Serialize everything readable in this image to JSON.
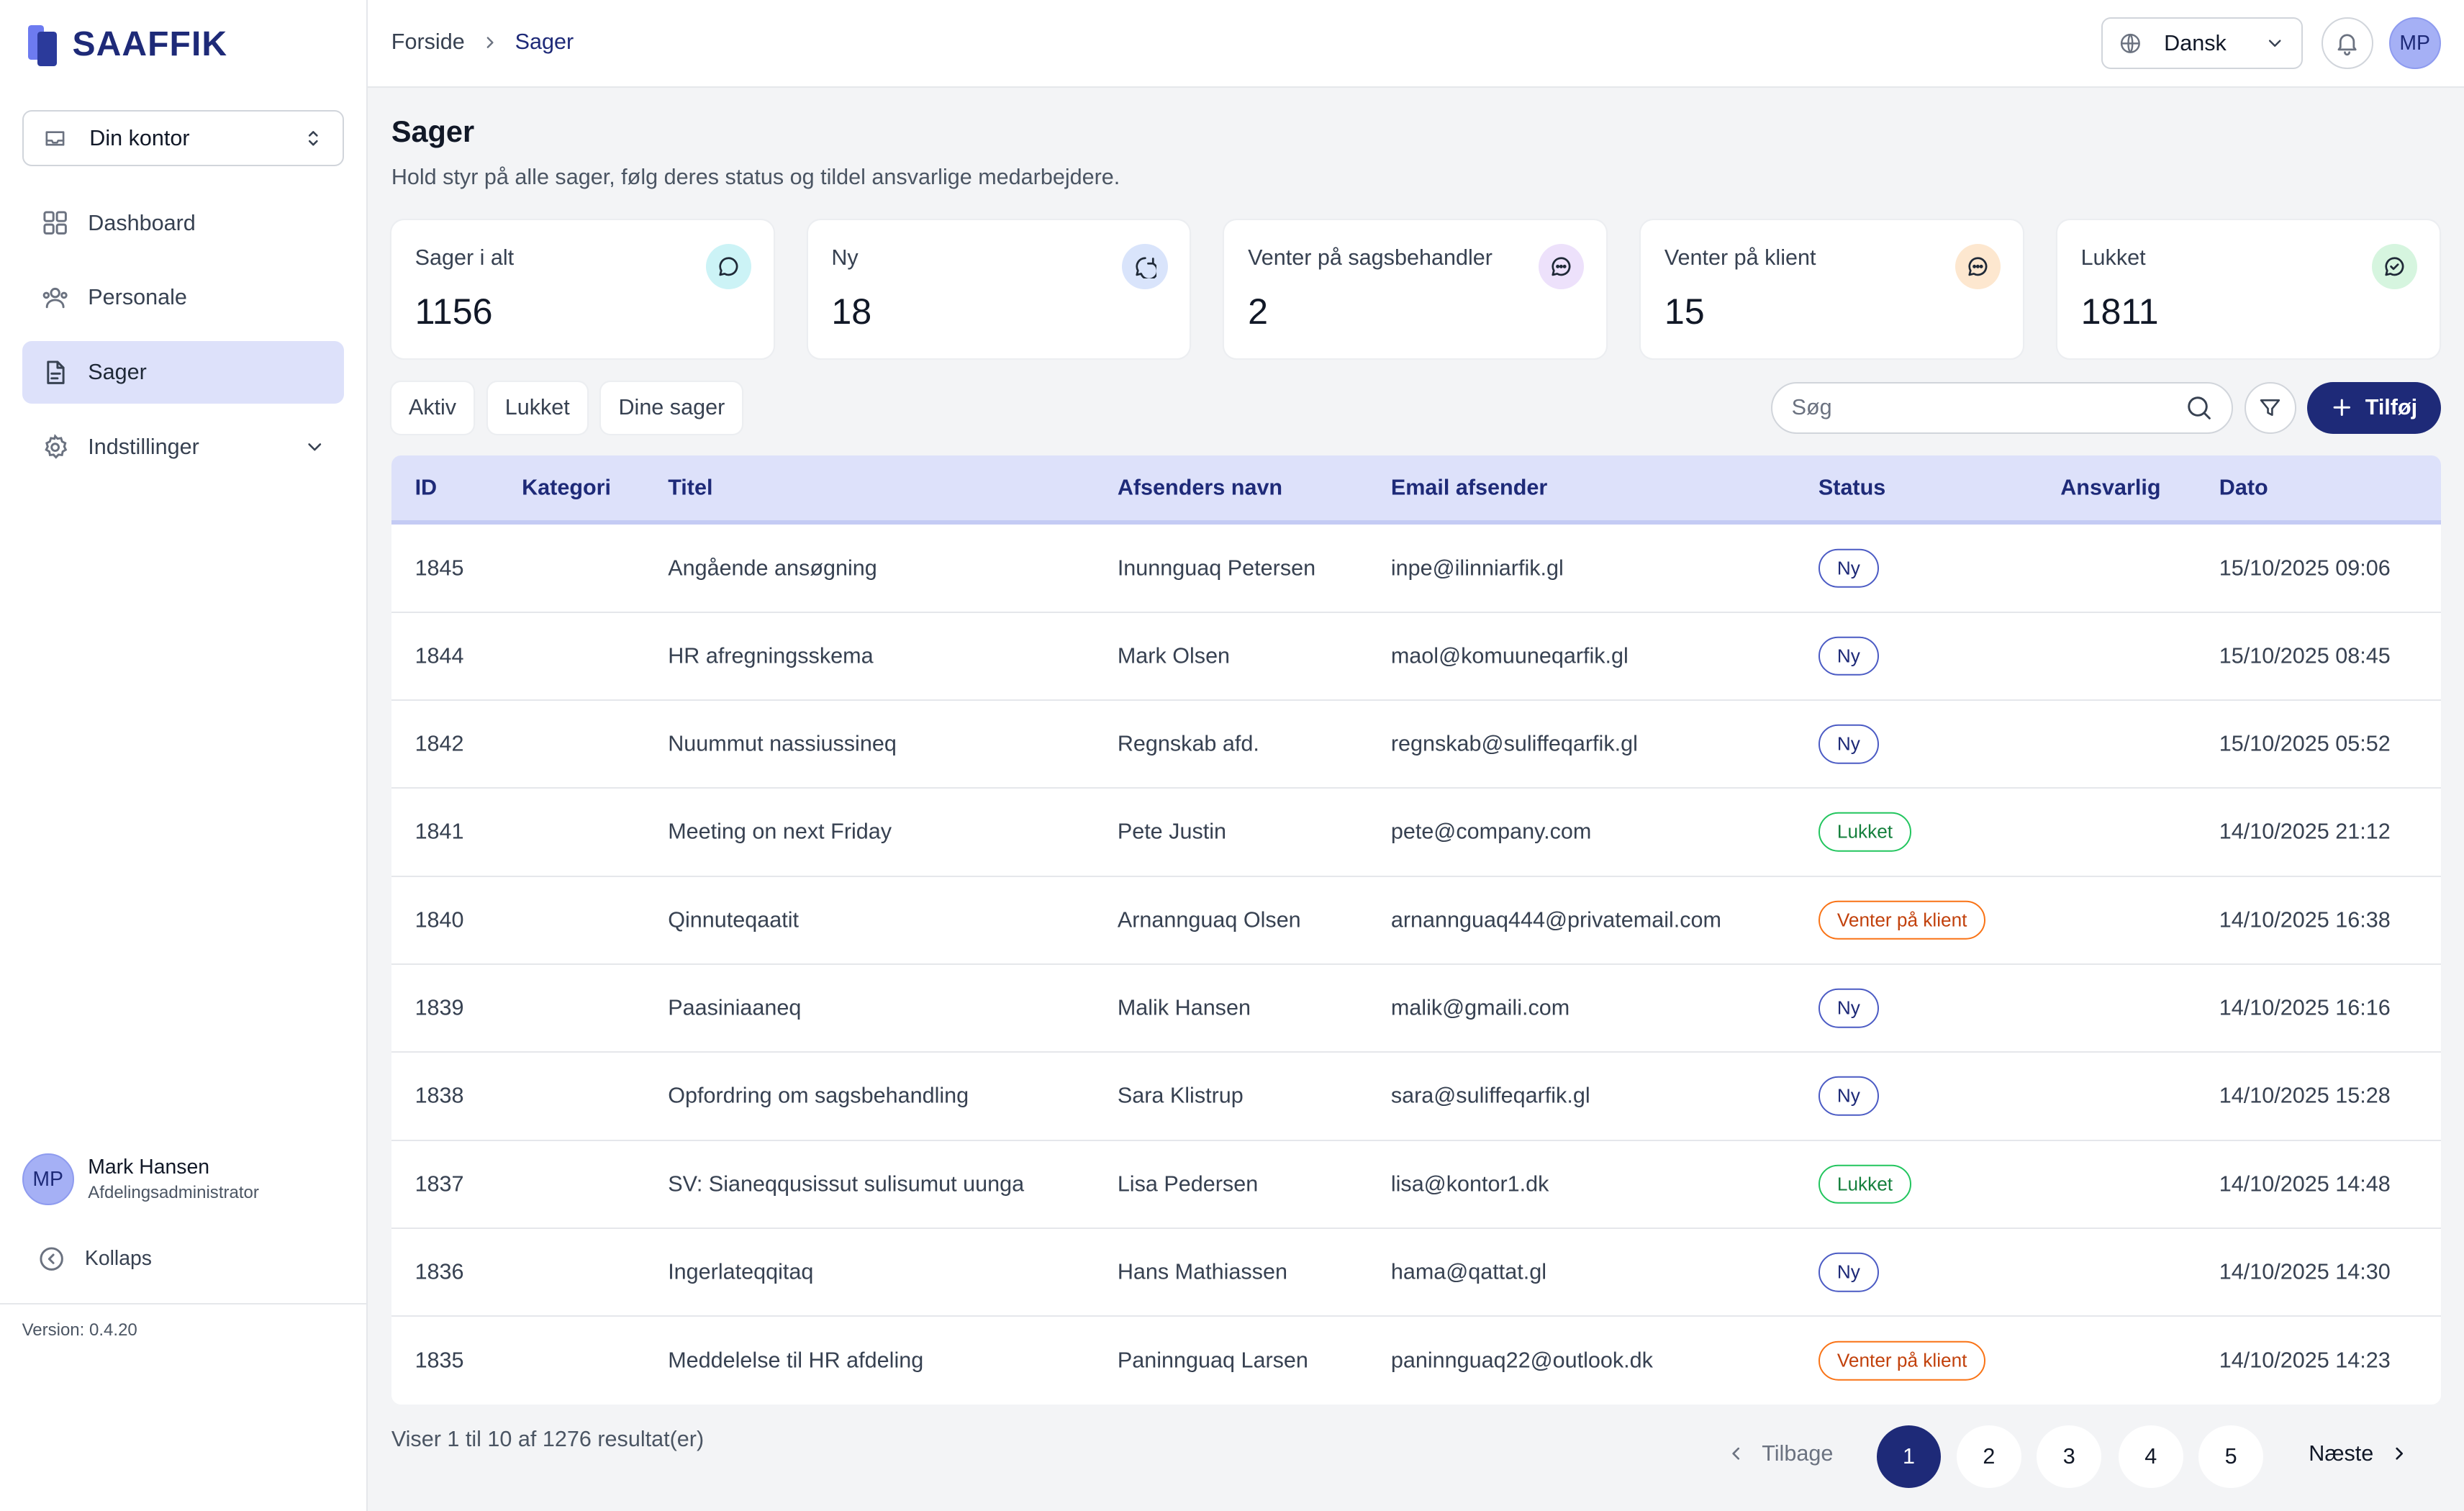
{
  "brand": {
    "name": "SAAFFIK"
  },
  "sidebar": {
    "office_select": "Din kontor",
    "items": [
      {
        "label": "Dashboard",
        "icon": "grid-icon"
      },
      {
        "label": "Personale",
        "icon": "users-icon"
      },
      {
        "label": "Sager",
        "icon": "document-icon",
        "active": true
      },
      {
        "label": "Indstillinger",
        "icon": "gear-icon"
      }
    ],
    "user": {
      "initials": "MP",
      "name": "Mark Hansen",
      "role": "Afdelingsadministrator"
    },
    "collapse_label": "Kollaps",
    "version": "Version: 0.4.20"
  },
  "topbar": {
    "breadcrumb": [
      "Forside",
      "Sager"
    ],
    "language": "Dansk",
    "avatar_initials": "MP"
  },
  "page": {
    "title": "Sager",
    "subtitle": "Hold styr på alle sager, følg deres status og tildel ansvarlige medarbejdere."
  },
  "stats": [
    {
      "label": "Sager i alt",
      "value": "1156",
      "icon": "chat-icon",
      "color": "#ccf3f6"
    },
    {
      "label": "Ny",
      "value": "18",
      "icon": "chat-refresh-icon",
      "color": "#d9e4fb"
    },
    {
      "label": "Venter på sagsbehandler",
      "value": "2",
      "icon": "chat-dots-icon",
      "color": "#ede1fb"
    },
    {
      "label": "Venter på klient",
      "value": "15",
      "icon": "chat-dots-icon",
      "color": "#fde7cf"
    },
    {
      "label": "Lukket",
      "value": "1811",
      "icon": "chat-check-icon",
      "color": "#d6f5df"
    }
  ],
  "filters": [
    "Aktiv",
    "Lukket",
    "Dine sager"
  ],
  "search": {
    "placeholder": "Søg"
  },
  "add_button": "Tilføj",
  "table": {
    "headers": [
      "ID",
      "Kategori",
      "Titel",
      "Afsenders navn",
      "Email afsender",
      "Status",
      "Ansvarlig",
      "Dato"
    ],
    "rows": [
      {
        "id": "1845",
        "kategori": "",
        "titel": "Angående ansøgning",
        "navn": "Inunnguaq Petersen",
        "email": "inpe@ilinniarfik.gl",
        "status": "Ny",
        "status_type": "ny",
        "ansvarlig": "",
        "dato": "15/10/2025 09:06"
      },
      {
        "id": "1844",
        "kategori": "",
        "titel": "HR afregningsskema",
        "navn": "Mark Olsen",
        "email": "maol@komuuneqarfik.gl",
        "status": "Ny",
        "status_type": "ny",
        "ansvarlig": "",
        "dato": "15/10/2025 08:45"
      },
      {
        "id": "1842",
        "kategori": "",
        "titel": "Nuummut nassiussineq",
        "navn": "Regnskab afd.",
        "email": "regnskab@suliffeqarfik.gl",
        "status": "Ny",
        "status_type": "ny",
        "ansvarlig": "",
        "dato": "15/10/2025 05:52"
      },
      {
        "id": "1841",
        "kategori": "",
        "titel": "Meeting on next Friday",
        "navn": "Pete Justin",
        "email": "pete@company.com",
        "status": "Lukket",
        "status_type": "lukket",
        "ansvarlig": "",
        "dato": "14/10/2025 21:12"
      },
      {
        "id": "1840",
        "kategori": "",
        "titel": "Qinnuteqaatit",
        "navn": "Arnannguaq Olsen",
        "email": "arnannguaq444@privatemail.com",
        "status": "Venter på klient",
        "status_type": "venter",
        "ansvarlig": "",
        "dato": "14/10/2025 16:38"
      },
      {
        "id": "1839",
        "kategori": "",
        "titel": "Paasiniaaneq",
        "navn": "Malik Hansen",
        "email": "malik@gmaili.com",
        "status": "Ny",
        "status_type": "ny",
        "ansvarlig": "",
        "dato": "14/10/2025 16:16"
      },
      {
        "id": "1838",
        "kategori": "",
        "titel": "Opfordring om sagsbehandling",
        "navn": "Sara Klistrup",
        "email": "sara@suliffeqarfik.gl",
        "status": "Ny",
        "status_type": "ny",
        "ansvarlig": "",
        "dato": "14/10/2025 15:28"
      },
      {
        "id": "1837",
        "kategori": "",
        "titel": "SV: Sianeqqusissut sulisumut uunga",
        "navn": "Lisa Pedersen",
        "email": "lisa@kontor1.dk",
        "status": "Lukket",
        "status_type": "lukket",
        "ansvarlig": "",
        "dato": "14/10/2025 14:48"
      },
      {
        "id": "1836",
        "kategori": "",
        "titel": "Ingerlateqqitaq",
        "navn": "Hans Mathiassen",
        "email": "hama@qattat.gl",
        "status": "Ny",
        "status_type": "ny",
        "ansvarlig": "",
        "dato": "14/10/2025 14:30"
      },
      {
        "id": "1835",
        "kategori": "",
        "titel": "Meddelelse til HR afdeling",
        "navn": "Paninnguaq Larsen",
        "email": "paninnguaq22@outlook.dk",
        "status": "Venter på klient",
        "status_type": "venter",
        "ansvarlig": "",
        "dato": "14/10/2025 14:23"
      }
    ]
  },
  "pagination": {
    "info": "Viser 1 til 10 af 1276 resultat(er)",
    "prev": "Tilbage",
    "next": "Næste",
    "pages": [
      "1",
      "2",
      "3",
      "4",
      "5"
    ],
    "current": "1"
  },
  "colors": {
    "primary": "#1e2a78",
    "active_bg": "#dde1fa"
  }
}
